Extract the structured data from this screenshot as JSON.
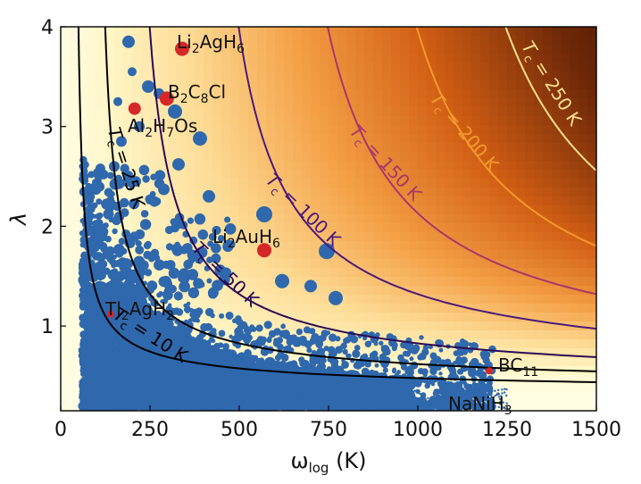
{
  "chart_data": {
    "type": "scatter",
    "xlabel": "ω_log (K)",
    "ylabel": "λ",
    "xlim": [
      0,
      1500
    ],
    "ylim": [
      0.15,
      4
    ],
    "xticks": [
      "0",
      "250",
      "500",
      "750",
      "1000",
      "1250",
      "1500"
    ],
    "yticks": [
      "1",
      "2",
      "3",
      "4"
    ],
    "background": "Tc heatmap (McMillan / Allen-Dynes estimate), light yellow at low Tc to dark brown at high Tc",
    "contours": [
      {
        "tc": 10,
        "label": "Tc = 10 K",
        "color": "#000000"
      },
      {
        "tc": 25,
        "label": "Tc = 25 K",
        "color": "#000000"
      },
      {
        "tc": 50,
        "label": "Tc = 50 K",
        "color": "#2a0a55"
      },
      {
        "tc": 100,
        "label": "Tc = 100 K",
        "color": "#4a1a7a"
      },
      {
        "tc": 150,
        "label": "Tc = 150 K",
        "color": "#a8366c"
      },
      {
        "tc": 200,
        "label": "Tc = 200 K",
        "color": "#f09a2c"
      },
      {
        "tc": 250,
        "label": "Tc = 250 K",
        "color": "#fbe08a"
      }
    ],
    "highlighted": [
      {
        "name": "Li2AgH6",
        "label_base": "Li",
        "label_parts": [
          [
            "Li",
            "2"
          ],
          [
            "AgH",
            "6"
          ]
        ],
        "x": 340,
        "y": 3.78,
        "size": "large"
      },
      {
        "name": "B2C8Cl",
        "label_parts": [
          [
            "B",
            "2"
          ],
          [
            "C",
            "8"
          ],
          [
            "Cl",
            ""
          ]
        ],
        "x": 297,
        "y": 3.28,
        "size": "large"
      },
      {
        "name": "Al2H7Os",
        "label_parts": [
          [
            "Al",
            "2"
          ],
          [
            "H",
            "7"
          ],
          [
            "Os",
            ""
          ]
        ],
        "x": 207,
        "y": 3.18,
        "size": "medium"
      },
      {
        "name": "Li2AuH6",
        "label_parts": [
          [
            "Li",
            "2"
          ],
          [
            "AuH",
            "6"
          ]
        ],
        "x": 570,
        "y": 1.76,
        "size": "large"
      },
      {
        "name": "Tl2AgH2",
        "label_parts": [
          [
            "Tl",
            "2"
          ],
          [
            "AgH",
            "2"
          ]
        ],
        "x": 140,
        "y": 1.12,
        "size": "small"
      },
      {
        "name": "BC11",
        "label_parts": [
          [
            "BC",
            "11"
          ]
        ],
        "x": 1200,
        "y": 0.55,
        "size": "small"
      },
      {
        "name": "NaNiH3",
        "label_parts": [
          [
            "NaNiH",
            "3"
          ]
        ],
        "x": 1210,
        "y": 0.17,
        "size": "none"
      }
    ],
    "points_description_sample": [
      {
        "x": 190,
        "y": 3.85,
        "s": 7
      },
      {
        "x": 245,
        "y": 3.4,
        "s": 7
      },
      {
        "x": 275,
        "y": 3.33,
        "s": 6
      },
      {
        "x": 160,
        "y": 3.25,
        "s": 5
      },
      {
        "x": 220,
        "y": 3.0,
        "s": 6
      },
      {
        "x": 320,
        "y": 3.15,
        "s": 8
      },
      {
        "x": 390,
        "y": 2.88,
        "s": 8
      },
      {
        "x": 170,
        "y": 2.85,
        "s": 6
      },
      {
        "x": 210,
        "y": 2.45,
        "s": 6
      },
      {
        "x": 330,
        "y": 2.62,
        "s": 7
      },
      {
        "x": 415,
        "y": 2.3,
        "s": 7
      },
      {
        "x": 570,
        "y": 2.12,
        "s": 9
      },
      {
        "x": 745,
        "y": 1.75,
        "s": 9
      },
      {
        "x": 620,
        "y": 1.45,
        "s": 8
      },
      {
        "x": 700,
        "y": 1.4,
        "s": 7
      },
      {
        "x": 770,
        "y": 1.28,
        "s": 8
      },
      {
        "x": 200,
        "y": 3.55,
        "s": 5
      },
      {
        "x": 150,
        "y": 2.6,
        "s": 6
      }
    ]
  },
  "colors": {
    "points": "#2f68ad",
    "highlight": "#d62728",
    "axis": "#000000"
  }
}
